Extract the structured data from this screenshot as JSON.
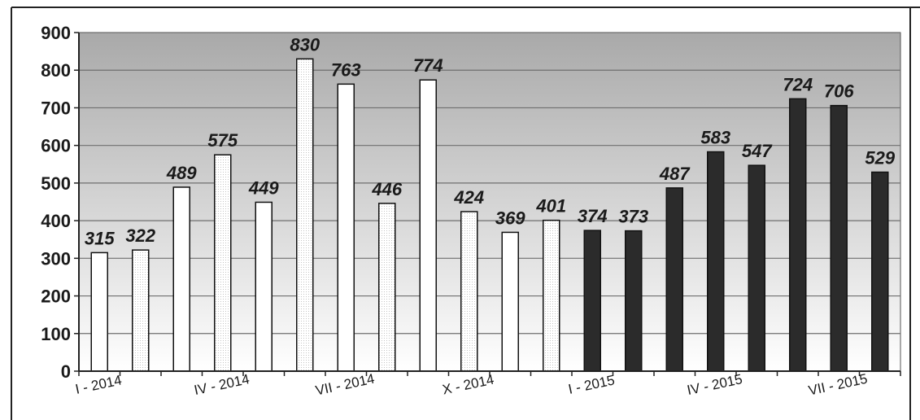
{
  "chart_data": {
    "type": "bar",
    "ylim": [
      0,
      900
    ],
    "yticks": [
      0,
      100,
      200,
      300,
      400,
      500,
      600,
      700,
      800,
      900
    ],
    "grid": true,
    "x_tick_labels": [
      {
        "label": "I - 2014",
        "index": 0
      },
      {
        "label": "IV - 2014",
        "index": 3
      },
      {
        "label": "VII - 2014",
        "index": 6
      },
      {
        "label": "X - 2014",
        "index": 9
      },
      {
        "label": "I - 2015",
        "index": 12
      },
      {
        "label": "IV - 2015",
        "index": 15
      },
      {
        "label": "VII - 2015",
        "index": 18
      }
    ],
    "values": [
      315,
      322,
      489,
      575,
      449,
      830,
      763,
      446,
      774,
      424,
      369,
      401,
      374,
      373,
      487,
      583,
      547,
      724,
      706,
      529
    ],
    "series_style": [
      "light",
      "light",
      "light",
      "light",
      "light",
      "light",
      "light",
      "light",
      "light",
      "light",
      "light",
      "light",
      "dark",
      "dark",
      "dark",
      "dark",
      "dark",
      "dark",
      "dark",
      "dark"
    ],
    "colors": {
      "bar_light": "#ffffff",
      "bar_dark": "#2b2b2b",
      "plot_top": "#a9a9a9",
      "plot_bottom": "#ffffff",
      "grid": "#6f6f6f"
    }
  }
}
